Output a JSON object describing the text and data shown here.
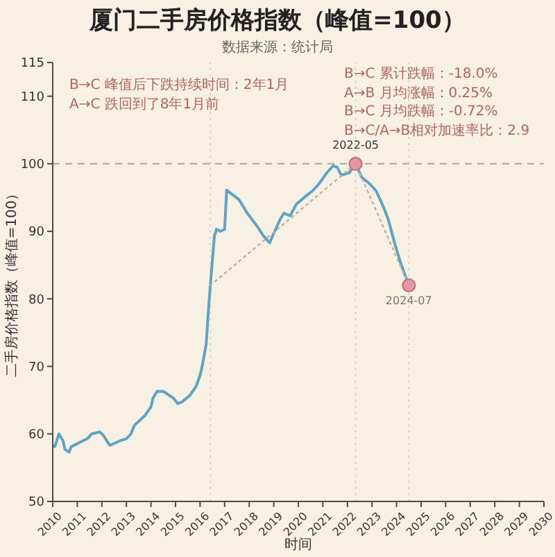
{
  "chart_data": {
    "type": "line",
    "title": "厦门二手房价格指数（峰值=100）",
    "subtitle": "数据来源：统计局",
    "xlabel": "时间",
    "ylabel": "二手房价格指数（峰值=100）",
    "xlim": [
      "2010",
      "2030"
    ],
    "xticks": [
      "2010",
      "2011",
      "2012",
      "2013",
      "2014",
      "2015",
      "2016",
      "2017",
      "2018",
      "2019",
      "2020",
      "2021",
      "2022",
      "2023",
      "2024",
      "2025",
      "2026",
      "2027",
      "2028",
      "2029",
      "2030"
    ],
    "ylim": [
      50,
      115
    ],
    "yticks": [
      50,
      60,
      70,
      80,
      90,
      100,
      110,
      115
    ],
    "series": [
      {
        "color": "#5ba4c7",
        "x": [
          "2010-01",
          "2010-02",
          "2010-04",
          "2010-06",
          "2010-07",
          "2010-09",
          "2010-10",
          "2011-02",
          "2011-06",
          "2011-08",
          "2011-12",
          "2012-02",
          "2012-04",
          "2012-05",
          "2012-10",
          "2013-01",
          "2013-03",
          "2013-05",
          "2013-10",
          "2014-01",
          "2014-02",
          "2014-04",
          "2014-07",
          "2014-10",
          "2014-12",
          "2015-02",
          "2015-04",
          "2015-08",
          "2015-11",
          "2016-01",
          "2016-02",
          "2016-04",
          "2016-05",
          "2016-06",
          "2016-08",
          "2016-09",
          "2016-11",
          "2017-01",
          "2017-02",
          "2017-08",
          "2017-12",
          "2018-05",
          "2018-08",
          "2018-11",
          "2019-01",
          "2019-04",
          "2019-06",
          "2019-09",
          "2019-12",
          "2020-05",
          "2020-08",
          "2020-11",
          "2021-03",
          "2021-06",
          "2021-08",
          "2021-10",
          "2022-02",
          "2022-05",
          "2022-08",
          "2022-12",
          "2023-03",
          "2023-05",
          "2023-07",
          "2023-09",
          "2023-12",
          "2024-03",
          "2024-07"
        ],
        "values": [
          58.3,
          58.1,
          60.0,
          59.0,
          57.7,
          57.3,
          58.1,
          58.7,
          59.3,
          60.0,
          60.3,
          59.7,
          58.7,
          58.3,
          59.0,
          59.3,
          59.9,
          61.3,
          62.7,
          64.0,
          65.3,
          66.3,
          66.3,
          65.7,
          65.3,
          64.5,
          64.7,
          65.7,
          67.0,
          68.7,
          70.0,
          73.3,
          78.0,
          82.0,
          89.3,
          90.3,
          90.0,
          90.3,
          96.1,
          94.7,
          92.7,
          90.7,
          89.3,
          88.3,
          89.7,
          91.7,
          92.7,
          92.3,
          94.0,
          95.3,
          96.0,
          97.0,
          98.7,
          99.7,
          99.5,
          98.3,
          98.7,
          100,
          98.0,
          97.0,
          96.0,
          94.7,
          93.3,
          91.7,
          88.3,
          85.3,
          82.0
        ]
      },
      {
        "color": "#bfb2a2",
        "line_style": "dotted",
        "x": [
          "2016-06",
          "2022-05",
          "2024-07"
        ],
        "values": [
          82.0,
          100,
          82.0
        ]
      },
      {
        "type": "scatter",
        "color": "#e597a5",
        "marker": "circle",
        "x": [
          "2022-05",
          "2024-07"
        ],
        "values": [
          100,
          82.0
        ]
      }
    ],
    "ref_lines": [
      {
        "axis": "y",
        "value": 100,
        "color": "#a8a39b",
        "line_style": "dashed"
      },
      {
        "axis": "x",
        "value": "2016-06",
        "color": "#d9cfc0",
        "line_style": "dotted"
      },
      {
        "axis": "x",
        "value": "2022-05",
        "color": "#d9cfc0",
        "line_style": "dotted"
      },
      {
        "axis": "x",
        "value": "2024-07",
        "color": "#d9cfc0",
        "line_style": "dotted"
      }
    ],
    "annotations": [
      "B→C 峰值后下跌持续时间：2年1月",
      "A→C 跌回到了8年1月前",
      "B→C 累计跌幅：-18.0%",
      "A→B 月均涨幅：0.25%",
      "B→C 月均跌幅：-0.72%",
      "B→C/A→B相对加速率比：2.9",
      {
        "text": "2022-05",
        "x": "2022-05",
        "y": 100
      },
      {
        "text": "2024-07",
        "x": "2024-07",
        "y": 82.0
      }
    ]
  }
}
